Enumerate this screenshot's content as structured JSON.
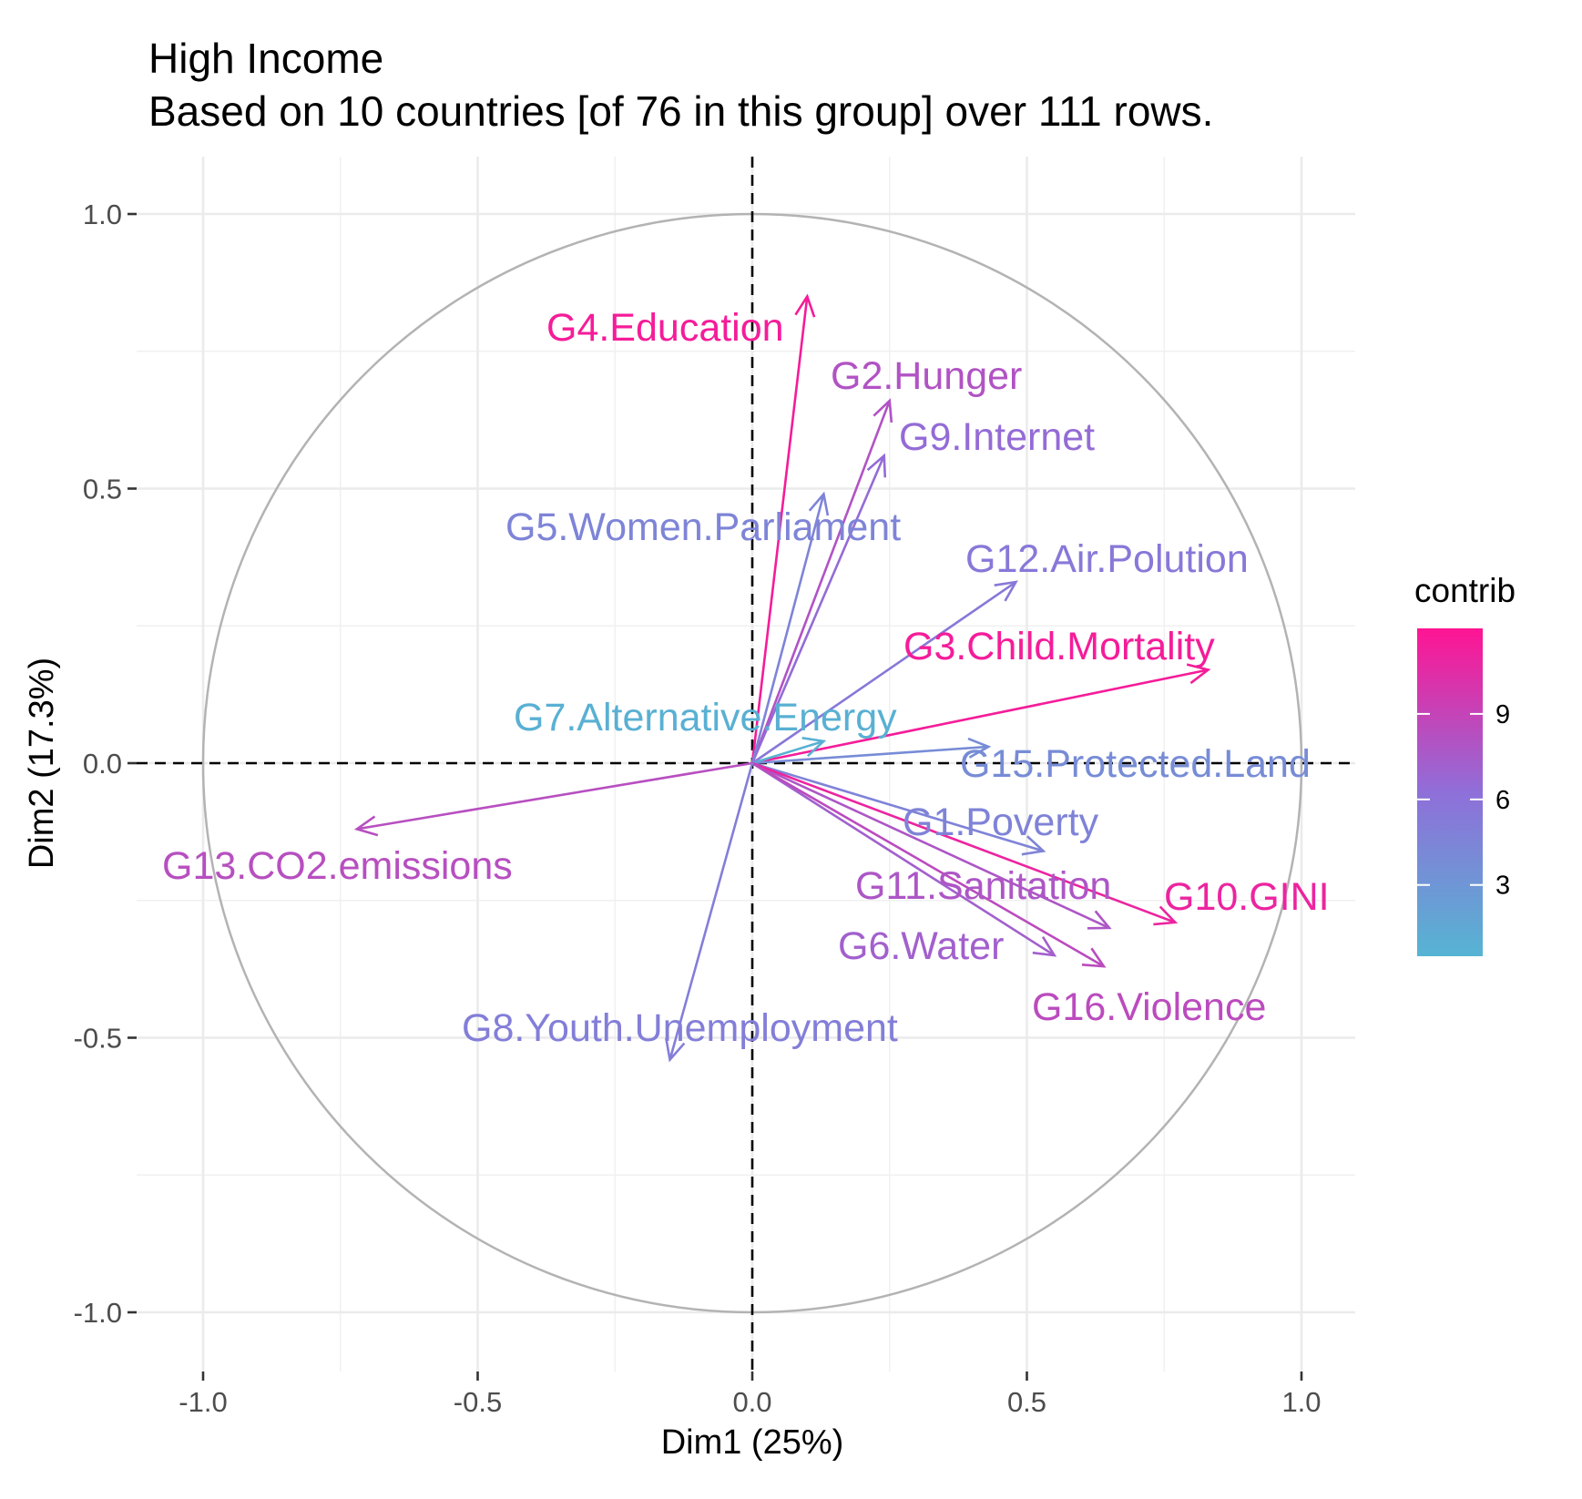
{
  "chart_data": {
    "type": "scatter",
    "subtype": "pca-variable-correlation-circle",
    "title": "High Income",
    "subtitle": "Based on 10 countries [of 76 in this group] over 111 rows.",
    "xlabel": "Dim1 (25%)",
    "ylabel": "Dim2 (17.3%)",
    "xlim": [
      -1.1,
      1.1
    ],
    "ylim": [
      -1.1,
      1.1
    ],
    "x_ticks": [
      -1.0,
      -0.5,
      0.0,
      0.5,
      1.0
    ],
    "y_ticks": [
      -1.0,
      -0.5,
      0.0,
      0.5,
      1.0
    ],
    "x_tick_labels": [
      "-1.0",
      "-0.5",
      "0.0",
      "0.5",
      "1.0"
    ],
    "y_tick_labels": [
      "-1.0",
      "-0.5",
      "0.0",
      "0.5",
      "1.0"
    ],
    "grid": true,
    "unit_circle": true,
    "reference_lines": "dashed lines at x=0 and y=0",
    "legend": {
      "title": "contrib",
      "placement": "right",
      "type": "continuous colorbar",
      "range": [
        0.5,
        12
      ],
      "ticks": [
        3,
        6,
        9
      ],
      "tick_labels": [
        "3",
        "6",
        "9"
      ],
      "colors": {
        "low": "#56b4d3",
        "mid": "#8f6fd9",
        "high": "#ff1493"
      }
    },
    "variables": [
      {
        "name": "G4.Education",
        "x": 0.1,
        "y": 0.85,
        "contrib": 11.5
      },
      {
        "name": "G2.Hunger",
        "x": 0.25,
        "y": 0.66,
        "contrib": 8.0
      },
      {
        "name": "G9.Internet",
        "x": 0.24,
        "y": 0.56,
        "contrib": 6.5
      },
      {
        "name": "G5.Women.Parliament",
        "x": 0.13,
        "y": 0.49,
        "contrib": 4.5
      },
      {
        "name": "G12.Air.Polution",
        "x": 0.48,
        "y": 0.33,
        "contrib": 5.5
      },
      {
        "name": "G3.Child.Mortality",
        "x": 0.83,
        "y": 0.17,
        "contrib": 11.5
      },
      {
        "name": "G7.Alternative.Energy",
        "x": 0.13,
        "y": 0.04,
        "contrib": 0.8
      },
      {
        "name": "G15.Protected.Land",
        "x": 0.43,
        "y": 0.03,
        "contrib": 3.8
      },
      {
        "name": "G13.CO2.emissions",
        "x": -0.72,
        "y": -0.12,
        "contrib": 8.3
      },
      {
        "name": "G1.Poverty",
        "x": 0.53,
        "y": -0.16,
        "contrib": 4.6
      },
      {
        "name": "G11.Sanitation",
        "x": 0.65,
        "y": -0.3,
        "contrib": 7.8
      },
      {
        "name": "G10.GINI",
        "x": 0.77,
        "y": -0.29,
        "contrib": 11.0
      },
      {
        "name": "G6.Water",
        "x": 0.55,
        "y": -0.35,
        "contrib": 7.2
      },
      {
        "name": "G16.Violence",
        "x": 0.64,
        "y": -0.37,
        "contrib": 8.5
      },
      {
        "name": "G8.Youth.Unemployment",
        "x": -0.15,
        "y": -0.54,
        "contrib": 5.0
      }
    ]
  }
}
